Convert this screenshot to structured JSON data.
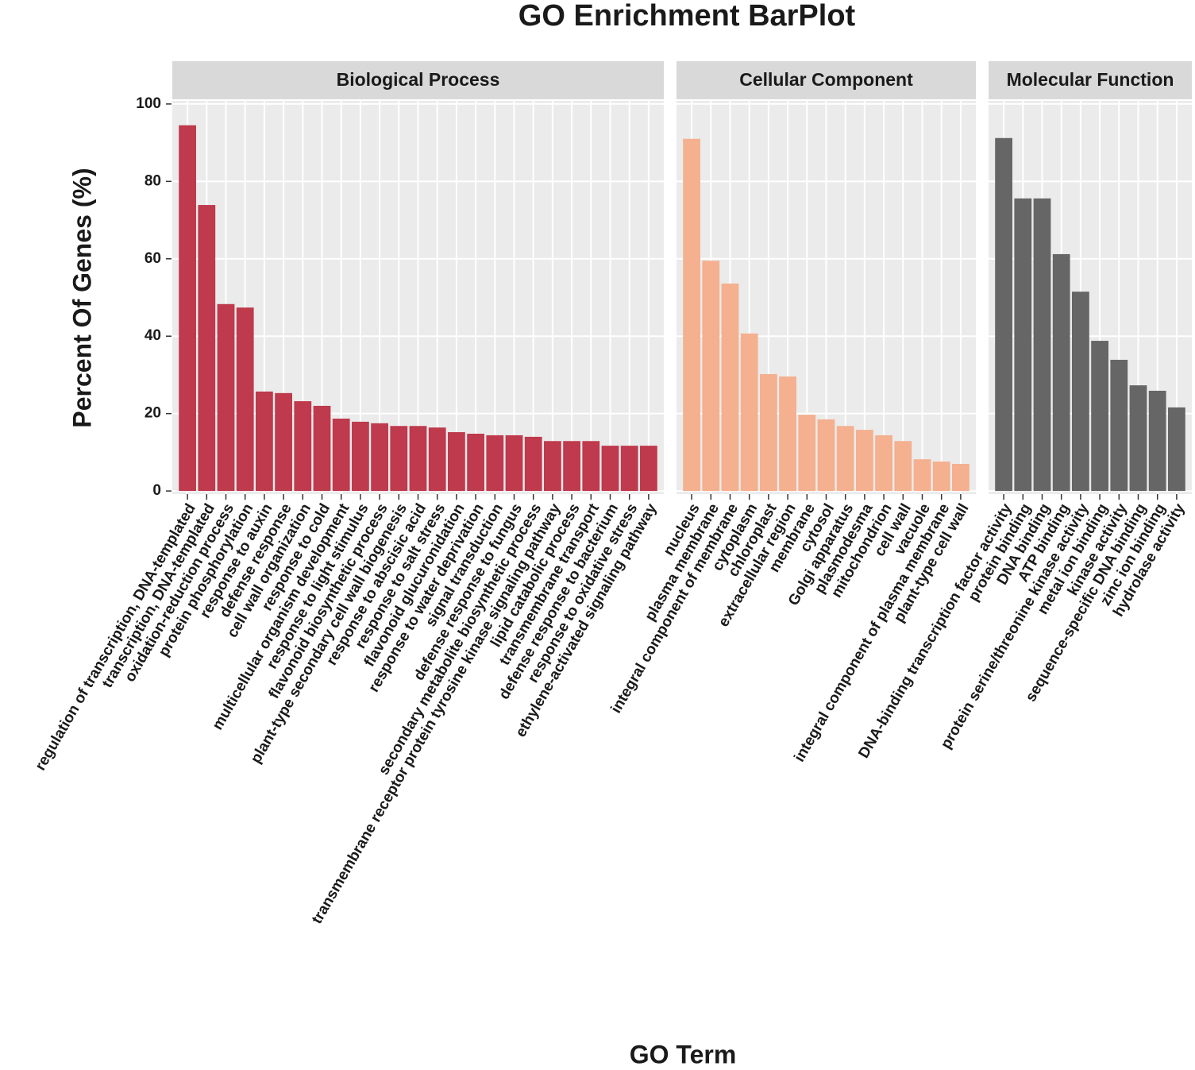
{
  "chart_data": {
    "type": "bar",
    "title": "GO Enrichment BarPlot",
    "x_label": "GO Term",
    "y_label": "Percent Of Genes (%)",
    "ylim": [
      -0.8,
      100.8
    ],
    "yticks": [
      0,
      20,
      40,
      60,
      80,
      100
    ],
    "grid": true,
    "series": [
      {
        "name": "Biological Process",
        "color": "#be3a4c",
        "categories": [
          "regulation of transcription, DNA-templated",
          "transcription, DNA-templated",
          "oxidation-reduction process",
          "protein phosphorylation",
          "response to auxin",
          "defense response",
          "cell wall organization",
          "response to cold",
          "multicellular organism development",
          "response to light stimulus",
          "flavonoid biosynthetic process",
          "plant-type secondary cell wall biogenesis",
          "response to abscisic acid",
          "response to salt stress",
          "flavonoid glucuronidation",
          "response to water deprivation",
          "signal transduction",
          "defense response to fungus",
          "secondary metabolite biosynthetic process",
          "transmembrane receptor protein tyrosine kinase signaling pathway",
          "lipid catabolic process",
          "transmembrane transport",
          "defense response to bacterium",
          "response to oxidative stress",
          "ethylene-activated signaling pathway"
        ],
        "values": [
          94.5,
          73.9,
          48.3,
          47.4,
          25.7,
          25.3,
          23.2,
          22.0,
          18.7,
          17.9,
          17.5,
          16.8,
          16.8,
          16.4,
          15.2,
          14.8,
          14.4,
          14.4,
          14.0,
          12.9,
          12.9,
          12.9,
          11.7,
          11.7,
          11.7
        ]
      },
      {
        "name": "Cellular Component",
        "color": "#f4b08f",
        "categories": [
          "nucleus",
          "plasma membrane",
          "integral component of membrane",
          "cytoplasm",
          "chloroplast",
          "extracellular region",
          "membrane",
          "cytosol",
          "Golgi apparatus",
          "plasmodesma",
          "mitochondrion",
          "cell wall",
          "vacuole",
          "integral component of plasma membrane",
          "plant-type cell wall"
        ],
        "values": [
          91.0,
          59.5,
          53.6,
          40.7,
          30.2,
          29.6,
          19.7,
          18.5,
          16.8,
          15.8,
          14.4,
          12.9,
          8.2,
          7.6,
          7.0
        ]
      },
      {
        "name": "Molecular Function",
        "color": "#666666",
        "categories": [
          "DNA-binding transcription factor activity",
          "protein binding",
          "DNA binding",
          "ATP binding",
          "protein serine/threonine kinase activity",
          "metal ion binding",
          "kinase activity",
          "sequence-specific DNA binding",
          "zinc ion binding",
          "hydrolase activity"
        ],
        "values": [
          91.2,
          75.6,
          75.6,
          61.2,
          51.5,
          38.8,
          33.9,
          27.3,
          25.9,
          21.6
        ]
      }
    ]
  }
}
